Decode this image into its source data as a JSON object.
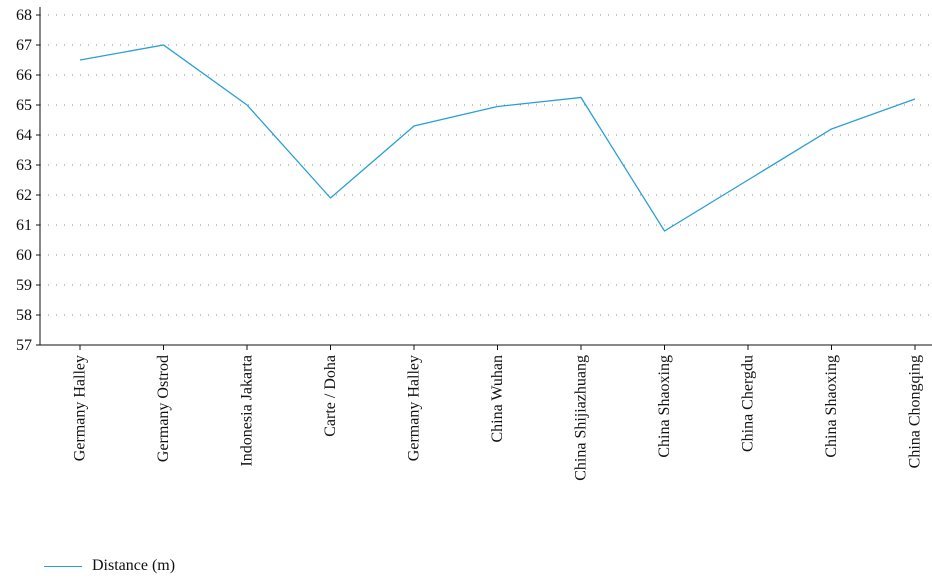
{
  "chart_data": {
    "type": "line",
    "categories": [
      "Germany Halley",
      "Germany Ostrod",
      "Indonesia Jakarta",
      "Carte / Doha",
      "Germany Halley",
      "China Wuhan",
      "China Shijiazhuang",
      "China Shaoxing",
      "China Chergdu",
      "China Shaoxing",
      "China Chongqing"
    ],
    "series": [
      {
        "name": "Distance (m)",
        "color": "#2a9fd6",
        "values": [
          66.5,
          67.0,
          65.0,
          61.9,
          64.3,
          64.95,
          65.25,
          60.8,
          62.5,
          64.2,
          65.2
        ]
      }
    ],
    "yticks": [
      57,
      58,
      59,
      60,
      61,
      62,
      63,
      64,
      65,
      66,
      67,
      68
    ],
    "ylim": [
      57,
      68
    ],
    "grid": true,
    "legend_position": "bottom-left"
  }
}
